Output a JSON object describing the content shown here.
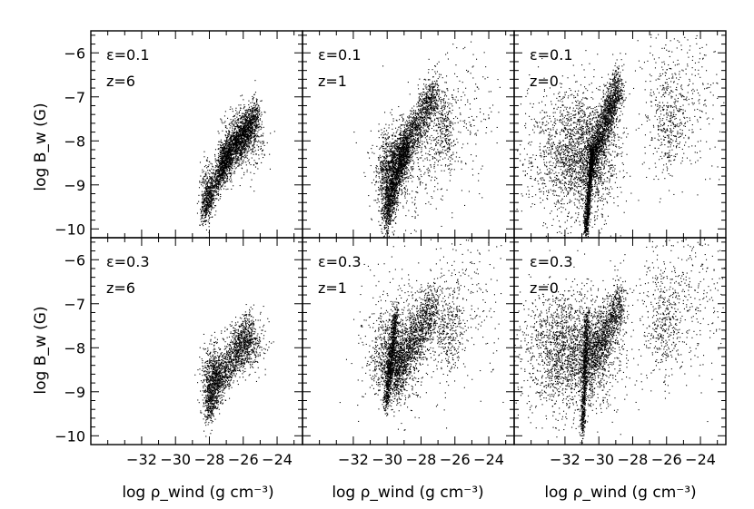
{
  "chart_data": {
    "type": "scatter",
    "layout": "2x3 grid",
    "xlabel": "log ρ_wind (g cm⁻³)",
    "ylabel": "log B_w (G)",
    "xlim": [
      -35,
      -22.5
    ],
    "ylim": [
      -10.2,
      -5.5
    ],
    "xticks": [
      -32,
      -30,
      -28,
      -26,
      -24
    ],
    "yticks": [
      -10,
      -9,
      -8,
      -7,
      -6
    ],
    "xtick_labels": [
      "−32",
      "−30",
      "−28",
      "−26",
      "−24"
    ],
    "ytick_labels": [
      "−10",
      "−9",
      "−8",
      "−7",
      "−6"
    ],
    "panels": [
      {
        "epsilon_label": "ε=0.1",
        "z_label": "z=6",
        "clusters": [
          {
            "kind": "band",
            "from": [
              -28.4,
              -9.6
            ],
            "to": [
              -26.8,
              -8.2
            ],
            "width": 0.22,
            "n": 900
          },
          {
            "kind": "band",
            "from": [
              -27.4,
              -8.6
            ],
            "to": [
              -25.2,
              -7.4
            ],
            "width": 0.26,
            "n": 1700
          },
          {
            "kind": "blob",
            "center": [
              -26.0,
              -7.9
            ],
            "spread": [
              0.6,
              0.35
            ],
            "n": 500
          },
          {
            "kind": "blob",
            "center": [
              -28.2,
              -9.2
            ],
            "spread": [
              0.2,
              0.35
            ],
            "n": 200
          }
        ]
      },
      {
        "epsilon_label": "ε=0.1",
        "z_label": "z=1",
        "clusters": [
          {
            "kind": "band",
            "from": [
              -30.1,
              -9.7
            ],
            "to": [
              -28.8,
              -8.0
            ],
            "width": 0.25,
            "n": 1100
          },
          {
            "kind": "band",
            "from": [
              -29.8,
              -8.6
            ],
            "to": [
              -27.1,
              -6.9
            ],
            "width": 0.28,
            "n": 1500
          },
          {
            "kind": "blob",
            "center": [
              -30.0,
              -8.9
            ],
            "spread": [
              0.3,
              0.55
            ],
            "n": 600
          },
          {
            "kind": "blob",
            "center": [
              -29.0,
              -8.6
            ],
            "spread": [
              1.1,
              0.6
            ],
            "n": 450
          },
          {
            "kind": "blob",
            "center": [
              -26.6,
              -7.8
            ],
            "spread": [
              0.35,
              0.45
            ],
            "n": 280
          },
          {
            "kind": "blob",
            "center": [
              -25.8,
              -7.3
            ],
            "spread": [
              1.2,
              0.8
            ],
            "n": 220
          }
        ]
      },
      {
        "epsilon_label": "ε=0.1",
        "z_label": "z=0",
        "clusters": [
          {
            "kind": "band",
            "from": [
              -30.8,
              -10.1
            ],
            "to": [
              -30.4,
              -8.2
            ],
            "width": 0.12,
            "n": 900
          },
          {
            "kind": "band",
            "from": [
              -30.6,
              -8.6
            ],
            "to": [
              -28.8,
              -6.7
            ],
            "width": 0.3,
            "n": 1600
          },
          {
            "kind": "blob",
            "center": [
              -30.8,
              -8.3
            ],
            "spread": [
              1.0,
              0.7
            ],
            "n": 1500
          },
          {
            "kind": "blob",
            "center": [
              -32.2,
              -8.4
            ],
            "spread": [
              1.2,
              0.75
            ],
            "n": 700
          },
          {
            "kind": "blob",
            "center": [
              -26.0,
              -7.6
            ],
            "spread": [
              0.5,
              0.6
            ],
            "n": 300
          },
          {
            "kind": "blob",
            "center": [
              -25.2,
              -7.0
            ],
            "spread": [
              1.3,
              0.9
            ],
            "n": 350
          }
        ]
      },
      {
        "epsilon_label": "ε=0.3",
        "z_label": "z=6",
        "clusters": [
          {
            "kind": "band",
            "from": [
              -28.2,
              -9.2
            ],
            "to": [
              -25.6,
              -7.6
            ],
            "width": 0.3,
            "n": 1300
          },
          {
            "kind": "blob",
            "center": [
              -27.8,
              -8.6
            ],
            "spread": [
              0.35,
              0.35
            ],
            "n": 500
          },
          {
            "kind": "blob",
            "center": [
              -25.8,
              -7.9
            ],
            "spread": [
              0.55,
              0.3
            ],
            "n": 350
          },
          {
            "kind": "blob",
            "center": [
              -28.0,
              -9.3
            ],
            "spread": [
              0.15,
              0.3
            ],
            "n": 100
          }
        ]
      },
      {
        "epsilon_label": "ε=0.3",
        "z_label": "z=1",
        "clusters": [
          {
            "kind": "band",
            "from": [
              -30.1,
              -9.3
            ],
            "to": [
              -29.5,
              -7.2
            ],
            "width": 0.15,
            "n": 800
          },
          {
            "kind": "band",
            "from": [
              -29.6,
              -8.6
            ],
            "to": [
              -27.2,
              -7.0
            ],
            "width": 0.35,
            "n": 1200
          },
          {
            "kind": "blob",
            "center": [
              -29.7,
              -8.3
            ],
            "spread": [
              0.6,
              0.45
            ],
            "n": 900
          },
          {
            "kind": "blob",
            "center": [
              -29.2,
              -7.8
            ],
            "spread": [
              1.2,
              0.7
            ],
            "n": 500
          },
          {
            "kind": "blob",
            "center": [
              -26.5,
              -7.6
            ],
            "spread": [
              0.45,
              0.5
            ],
            "n": 300
          },
          {
            "kind": "blob",
            "center": [
              -25.5,
              -7.0
            ],
            "spread": [
              1.3,
              0.8
            ],
            "n": 250
          }
        ]
      },
      {
        "epsilon_label": "ε=0.3",
        "z_label": "z=0",
        "clusters": [
          {
            "kind": "band",
            "from": [
              -31.0,
              -9.9
            ],
            "to": [
              -30.7,
              -7.2
            ],
            "width": 0.12,
            "n": 700
          },
          {
            "kind": "band",
            "from": [
              -30.7,
              -8.4
            ],
            "to": [
              -28.6,
              -6.9
            ],
            "width": 0.35,
            "n": 1100
          },
          {
            "kind": "blob",
            "center": [
              -31.1,
              -8.2
            ],
            "spread": [
              1.2,
              0.65
            ],
            "n": 1500
          },
          {
            "kind": "blob",
            "center": [
              -32.6,
              -8.0
            ],
            "spread": [
              1.1,
              0.7
            ],
            "n": 700
          },
          {
            "kind": "blob",
            "center": [
              -26.2,
              -7.5
            ],
            "spread": [
              0.5,
              0.6
            ],
            "n": 280
          },
          {
            "kind": "blob",
            "center": [
              -25.3,
              -6.9
            ],
            "spread": [
              1.5,
              0.9
            ],
            "n": 400
          }
        ]
      }
    ]
  }
}
